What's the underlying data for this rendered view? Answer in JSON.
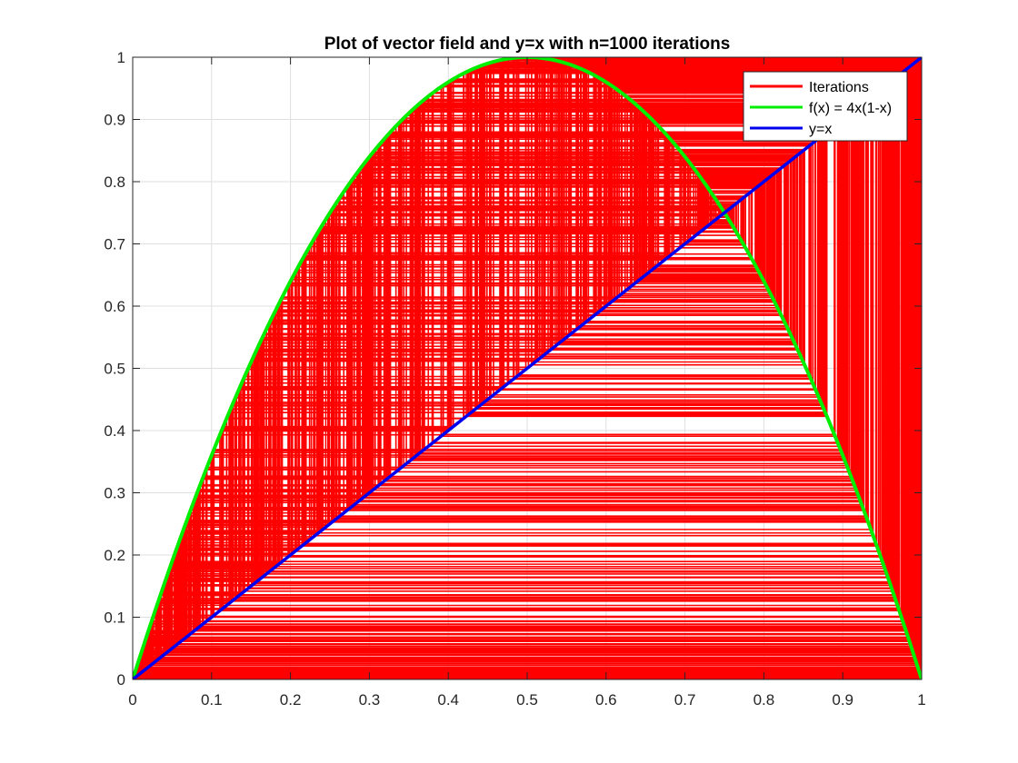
{
  "chart_data": {
    "type": "line",
    "title": "Plot of vector field and y=x with n=1000 iterations",
    "xlabel": "",
    "ylabel": "",
    "xlim": [
      0,
      1
    ],
    "ylim": [
      0,
      1
    ],
    "xticks": [
      "0",
      "0.1",
      "0.2",
      "0.3",
      "0.4",
      "0.5",
      "0.6",
      "0.7",
      "0.8",
      "0.9",
      "1"
    ],
    "yticks": [
      "0",
      "0.1",
      "0.2",
      "0.3",
      "0.4",
      "0.5",
      "0.6",
      "0.7",
      "0.8",
      "0.9",
      "1"
    ],
    "grid": true,
    "legend_position": "top-right",
    "iterations": 1000,
    "map_r": 4,
    "x0": 0.01,
    "series": [
      {
        "name": "Iterations",
        "color": "#ff0000",
        "kind": "cobweb"
      },
      {
        "name": "f(x) = 4x(1-x)",
        "color": "#00ee00",
        "kind": "function"
      },
      {
        "name": "y=x",
        "color": "#0000ee",
        "kind": "identity"
      }
    ]
  }
}
